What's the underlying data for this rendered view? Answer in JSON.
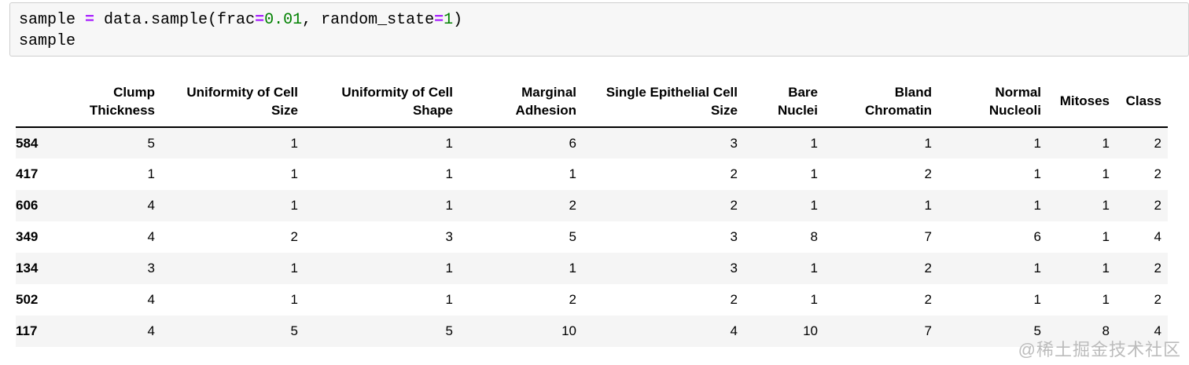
{
  "colors": {
    "operator": "#AA22FF",
    "number": "#008000",
    "stripe": "#f5f5f5",
    "header_border": "#000000",
    "cell_bg": "#f7f7f7",
    "cell_border": "#cfcfcf",
    "watermark": "#b5b5b5"
  },
  "code": {
    "lines": [
      {
        "tokens": [
          {
            "t": "sample ",
            "c": "plain"
          },
          {
            "t": "=",
            "c": "op"
          },
          {
            "t": " data.sample(frac",
            "c": "plain"
          },
          {
            "t": "=",
            "c": "op"
          },
          {
            "t": "0.01",
            "c": "num"
          },
          {
            "t": ", random_state",
            "c": "plain"
          },
          {
            "t": "=",
            "c": "op"
          },
          {
            "t": "1",
            "c": "num"
          },
          {
            "t": ")",
            "c": "plain"
          }
        ]
      },
      {
        "tokens": [
          {
            "t": "sample",
            "c": "plain"
          }
        ]
      }
    ]
  },
  "table": {
    "index_header": "",
    "columns": [
      {
        "label": "Clump Thickness",
        "lines": [
          "Clump",
          "Thickness"
        ]
      },
      {
        "label": "Uniformity of Cell Size",
        "lines": [
          "Uniformity of Cell",
          "Size"
        ]
      },
      {
        "label": "Uniformity of Cell Shape",
        "lines": [
          "Uniformity of Cell",
          "Shape"
        ]
      },
      {
        "label": "Marginal Adhesion",
        "lines": [
          "Marginal",
          "Adhesion"
        ]
      },
      {
        "label": "Single Epithelial Cell Size",
        "lines": [
          "Single Epithelial Cell",
          "Size"
        ]
      },
      {
        "label": "Bare Nuclei",
        "lines": [
          "Bare",
          "Nuclei"
        ]
      },
      {
        "label": "Bland Chromatin",
        "lines": [
          "Bland",
          "Chromatin"
        ]
      },
      {
        "label": "Normal Nucleoli",
        "lines": [
          "Normal",
          "Nucleoli"
        ]
      },
      {
        "label": "Mitoses",
        "lines": [
          "Mitoses"
        ]
      },
      {
        "label": "Class",
        "lines": [
          "Class"
        ]
      }
    ],
    "rows": [
      {
        "index": "584",
        "values": [
          "5",
          "1",
          "1",
          "6",
          "3",
          "1",
          "1",
          "1",
          "1",
          "2"
        ]
      },
      {
        "index": "417",
        "values": [
          "1",
          "1",
          "1",
          "1",
          "2",
          "1",
          "2",
          "1",
          "1",
          "2"
        ]
      },
      {
        "index": "606",
        "values": [
          "4",
          "1",
          "1",
          "2",
          "2",
          "1",
          "1",
          "1",
          "1",
          "2"
        ]
      },
      {
        "index": "349",
        "values": [
          "4",
          "2",
          "3",
          "5",
          "3",
          "8",
          "7",
          "6",
          "1",
          "4"
        ]
      },
      {
        "index": "134",
        "values": [
          "3",
          "1",
          "1",
          "1",
          "3",
          "1",
          "2",
          "1",
          "1",
          "2"
        ]
      },
      {
        "index": "502",
        "values": [
          "4",
          "1",
          "1",
          "2",
          "2",
          "1",
          "2",
          "1",
          "1",
          "2"
        ]
      },
      {
        "index": "117",
        "values": [
          "4",
          "5",
          "5",
          "10",
          "4",
          "10",
          "7",
          "5",
          "8",
          "4"
        ]
      }
    ]
  },
  "watermark": "@稀土掘金技术社区"
}
